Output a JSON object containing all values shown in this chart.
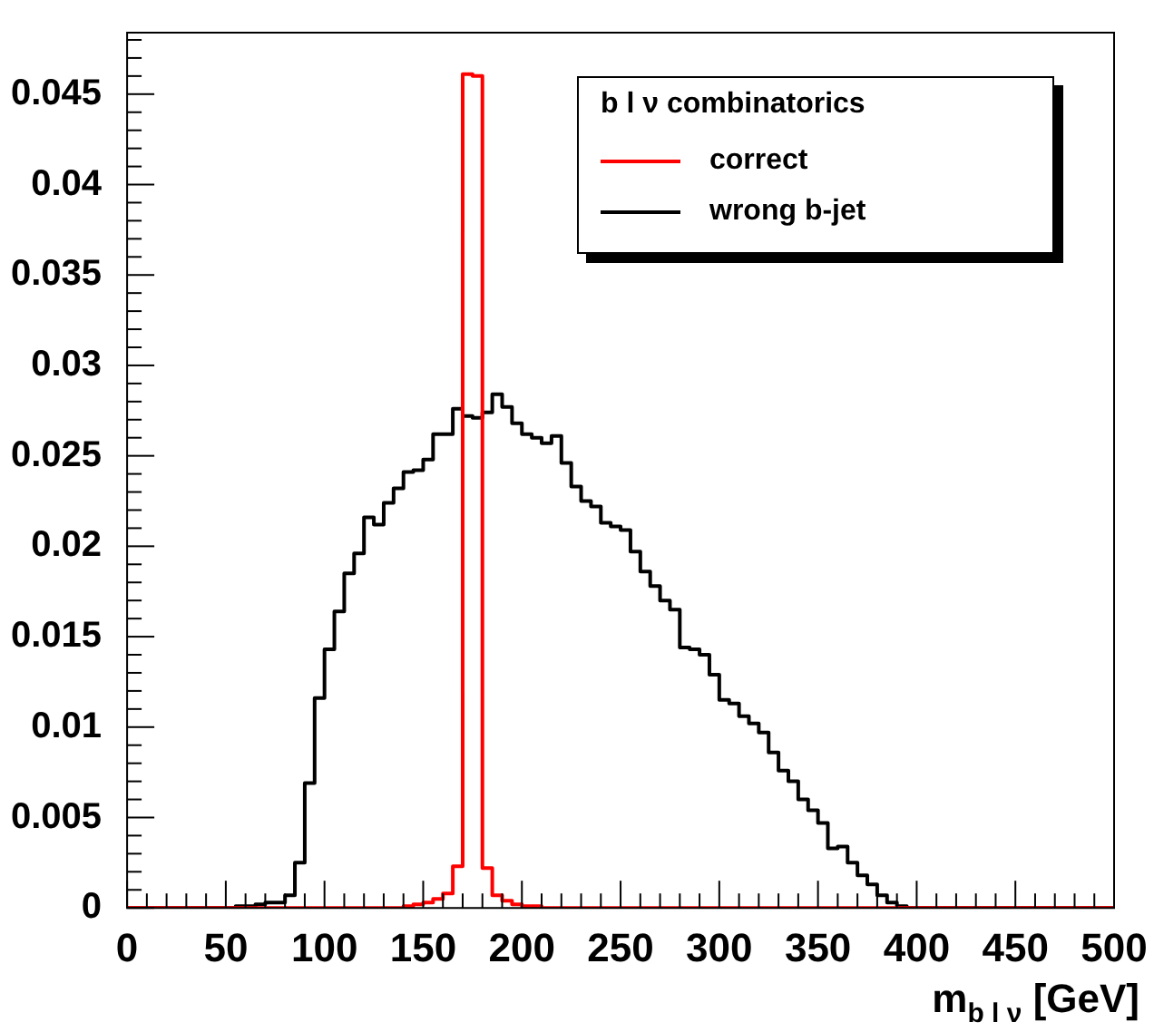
{
  "chart_data": {
    "type": "histogram",
    "xlabel": "m$_{b l ν}$ [GeV]",
    "legend_title": "b l ν combinatorics",
    "legend": "top right",
    "grid": false,
    "line_style": "solid",
    "marker": "none",
    "bins": [
      0,
      5,
      10,
      15,
      20,
      25,
      30,
      35,
      40,
      45,
      50,
      55,
      60,
      65,
      70,
      75,
      80,
      85,
      90,
      95,
      100,
      105,
      110,
      115,
      120,
      125,
      130,
      135,
      140,
      145,
      150,
      155,
      160,
      165,
      170,
      175,
      180,
      185,
      190,
      195,
      200,
      205,
      210,
      215,
      220,
      225,
      230,
      235,
      240,
      245,
      250,
      255,
      260,
      265,
      270,
      275,
      280,
      285,
      290,
      295,
      300,
      305,
      310,
      315,
      320,
      325,
      330,
      335,
      340,
      345,
      350,
      355,
      360,
      365,
      370,
      375,
      380,
      385,
      390,
      395,
      400,
      405,
      410,
      415,
      420,
      425,
      430,
      435,
      440,
      445,
      450,
      455,
      460,
      465,
      470,
      475,
      480,
      485,
      490,
      495,
      500
    ],
    "series": [
      {
        "name": "correct",
        "color": "#ff0000",
        "values": [
          0,
          0,
          0,
          0,
          0,
          0,
          0,
          0,
          0,
          0,
          0,
          0,
          0,
          0,
          0,
          0,
          0,
          0,
          0,
          0,
          0,
          0,
          0,
          0,
          0,
          0,
          0,
          0,
          0.0001,
          0.0002,
          0.0003,
          0.0005,
          0.0008,
          0.0023,
          0.0461,
          0.046,
          0.0022,
          0.0007,
          0.0004,
          0.0002,
          0.0001,
          0.0001,
          0,
          0,
          0,
          0,
          0,
          0,
          0,
          0,
          0,
          0,
          0,
          0,
          0,
          0,
          0,
          0,
          0,
          0,
          0,
          0,
          0,
          0,
          0,
          0,
          0,
          0,
          0,
          0,
          0,
          0,
          0,
          0,
          0,
          0,
          0,
          0,
          0,
          0,
          0,
          0,
          0,
          0,
          0,
          0,
          0,
          0,
          0,
          0,
          0,
          0,
          0,
          0,
          0,
          0,
          0,
          0,
          0,
          0
        ]
      },
      {
        "name": "wrong b-jet",
        "color": "#000000",
        "values": [
          0,
          0,
          0,
          0,
          0,
          0,
          0,
          0,
          0,
          0,
          0,
          0.0001,
          0.0001,
          0.0002,
          0.0003,
          0.0003,
          0.0007,
          0.0025,
          0.0069,
          0.0116,
          0.0143,
          0.0164,
          0.0185,
          0.0196,
          0.0216,
          0.0212,
          0.0224,
          0.0232,
          0.0241,
          0.0242,
          0.0248,
          0.0262,
          0.0262,
          0.0276,
          0.0272,
          0.0271,
          0.0274,
          0.0284,
          0.0277,
          0.0268,
          0.0262,
          0.026,
          0.0257,
          0.0261,
          0.0246,
          0.0233,
          0.0225,
          0.0222,
          0.0213,
          0.0211,
          0.0209,
          0.0197,
          0.0186,
          0.0178,
          0.017,
          0.0165,
          0.0144,
          0.0143,
          0.014,
          0.0129,
          0.0115,
          0.0113,
          0.0106,
          0.0102,
          0.0097,
          0.0086,
          0.0076,
          0.007,
          0.006,
          0.0054,
          0.0047,
          0.0033,
          0.0034,
          0.0025,
          0.0018,
          0.0013,
          0.0007,
          0.0003,
          0.0001,
          0,
          0,
          0,
          0,
          0,
          0,
          0,
          0,
          0,
          0,
          0,
          0,
          0,
          0,
          0,
          0,
          0,
          0,
          0,
          0,
          0
        ]
      }
    ],
    "xlim": [
      0,
      500
    ],
    "ylim": [
      0,
      0.0484
    ],
    "xticks": [
      0,
      {
        "value": 10,
        "label": null
      },
      {
        "value": 20,
        "label": null
      },
      {
        "value": 30,
        "label": null
      },
      {
        "value": 40,
        "label": null
      },
      50,
      {
        "value": 60,
        "label": null
      },
      {
        "value": 70,
        "label": null
      },
      {
        "value": 80,
        "label": null
      },
      {
        "value": 90,
        "label": null
      },
      100,
      {
        "value": 110,
        "label": null
      },
      {
        "value": 120,
        "label": null
      },
      {
        "value": 130,
        "label": null
      },
      {
        "value": 140,
        "label": null
      },
      150,
      {
        "value": 160,
        "label": null
      },
      {
        "value": 170,
        "label": null
      },
      {
        "value": 180,
        "label": null
      },
      {
        "value": 190,
        "label": null
      },
      200,
      {
        "value": 210,
        "label": null
      },
      {
        "value": 220,
        "label": null
      },
      {
        "value": 230,
        "label": null
      },
      {
        "value": 240,
        "label": null
      },
      250,
      {
        "value": 260,
        "label": null
      },
      {
        "value": 270,
        "label": null
      },
      {
        "value": 280,
        "label": null
      },
      {
        "value": 290,
        "label": null
      },
      300,
      {
        "value": 310,
        "label": null
      },
      {
        "value": 320,
        "label": null
      },
      {
        "value": 330,
        "label": null
      },
      {
        "value": 340,
        "label": null
      },
      350,
      {
        "value": 360,
        "label": null
      },
      {
        "value": 370,
        "label": null
      },
      {
        "value": 380,
        "label": null
      },
      {
        "value": 390,
        "label": null
      },
      400,
      {
        "value": 410,
        "label": null
      },
      {
        "value": 420,
        "label": null
      },
      {
        "value": 430,
        "label": null
      },
      {
        "value": 440,
        "label": null
      },
      450,
      {
        "value": 460,
        "label": null
      },
      {
        "value": 470,
        "label": null
      },
      {
        "value": 480,
        "label": null
      },
      {
        "value": 490,
        "label": null
      },
      500
    ],
    "yticks": [
      0,
      {
        "value": 0.001,
        "label": null
      },
      {
        "value": 0.002,
        "label": null
      },
      {
        "value": 0.003,
        "label": null
      },
      {
        "value": 0.004,
        "label": null
      },
      0.005,
      {
        "value": 0.006,
        "label": null
      },
      {
        "value": 0.007,
        "label": null
      },
      {
        "value": 0.008,
        "label": null
      },
      {
        "value": 0.009,
        "label": null
      },
      0.01,
      {
        "value": 0.011,
        "label": null
      },
      {
        "value": 0.012,
        "label": null
      },
      {
        "value": 0.013,
        "label": null
      },
      {
        "value": 0.014,
        "label": null
      },
      0.015,
      {
        "value": 0.016,
        "label": null
      },
      {
        "value": 0.017,
        "label": null
      },
      {
        "value": 0.018,
        "label": null
      },
      {
        "value": 0.019,
        "label": null
      },
      0.02,
      {
        "value": 0.021,
        "label": null
      },
      {
        "value": 0.022,
        "label": null
      },
      {
        "value": 0.023,
        "label": null
      },
      {
        "value": 0.024,
        "label": null
      },
      0.025,
      {
        "value": 0.026,
        "label": null
      },
      {
        "value": 0.027,
        "label": null
      },
      {
        "value": 0.028,
        "label": null
      },
      {
        "value": 0.029,
        "label": null
      },
      0.03,
      {
        "value": 0.031,
        "label": null
      },
      {
        "value": 0.032,
        "label": null
      },
      {
        "value": 0.033,
        "label": null
      },
      {
        "value": 0.034,
        "label": null
      },
      0.035,
      {
        "value": 0.036,
        "label": null
      },
      {
        "value": 0.037,
        "label": null
      },
      {
        "value": 0.038,
        "label": null
      },
      {
        "value": 0.039,
        "label": null
      },
      0.04,
      {
        "value": 0.041,
        "label": null
      },
      {
        "value": 0.042,
        "label": null
      },
      {
        "value": 0.043,
        "label": null
      },
      {
        "value": 0.044,
        "label": null
      },
      0.045,
      {
        "value": 0.046,
        "label": null
      },
      {
        "value": 0.047,
        "label": null
      },
      {
        "value": 0.048,
        "label": null
      }
    ]
  }
}
